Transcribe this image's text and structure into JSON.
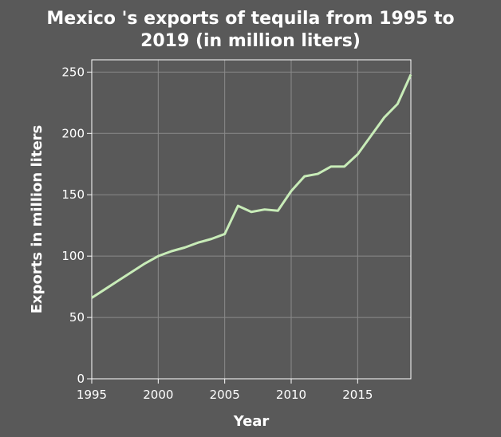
{
  "chart_data": {
    "type": "line",
    "title_lines": [
      "Mexico 's exports of tequila from 1995 to",
      "2019 (in million liters)"
    ],
    "xlabel": "Year",
    "ylabel": "Exports in million liters",
    "xlim": [
      1995,
      2019
    ],
    "ylim": [
      0,
      260
    ],
    "x_ticks": [
      1995,
      2000,
      2005,
      2010,
      2015
    ],
    "y_ticks": [
      0,
      50,
      100,
      150,
      200,
      250
    ],
    "grid": true,
    "line_color": "#c8ecb8",
    "series": [
      {
        "x": [
          1995,
          1996,
          1997,
          1998,
          1999,
          2000,
          2001,
          2002,
          2003,
          2004,
          2005,
          2006,
          2007,
          2008,
          2009,
          2010,
          2011,
          2012,
          2013,
          2014,
          2015,
          2016,
          2017,
          2018,
          2019
        ],
        "values": [
          66,
          73,
          80,
          87,
          94,
          100,
          104,
          107,
          111,
          114,
          118,
          141,
          136,
          138,
          137,
          153,
          165,
          167,
          173,
          173,
          183,
          198,
          213,
          224,
          248
        ]
      }
    ]
  }
}
